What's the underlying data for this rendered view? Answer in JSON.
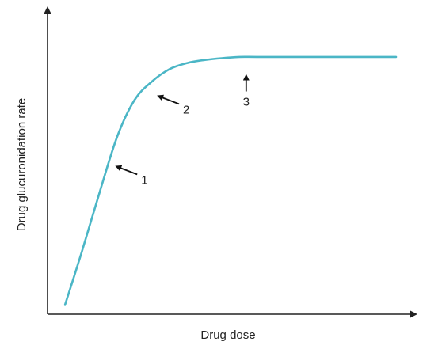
{
  "chart_data": {
    "type": "line",
    "title": "",
    "xlabel": "Drug dose",
    "ylabel": "Drug glucuronidation rate",
    "grid": false,
    "legend": "none",
    "ticks_shown": false,
    "xlim": [
      0,
      100
    ],
    "ylim": [
      0,
      100
    ],
    "series": [
      {
        "color": "#4bb6c6",
        "x": [
          5,
          10,
          15,
          20,
          25,
          30,
          35,
          40,
          45,
          50,
          55,
          60,
          70,
          80,
          90,
          100
        ],
        "y": [
          3,
          21,
          40,
          58,
          70,
          76,
          80,
          82,
          83,
          83.6,
          84,
          84,
          84,
          84,
          84,
          84
        ]
      }
    ],
    "annotations": [
      {
        "label": "1",
        "x": 18,
        "y": 49,
        "arrow": "points-left-up"
      },
      {
        "label": "2",
        "x": 30,
        "y": 72,
        "arrow": "points-left-up"
      },
      {
        "label": "3",
        "x": 57,
        "y": 81,
        "arrow": "points-up"
      }
    ]
  }
}
